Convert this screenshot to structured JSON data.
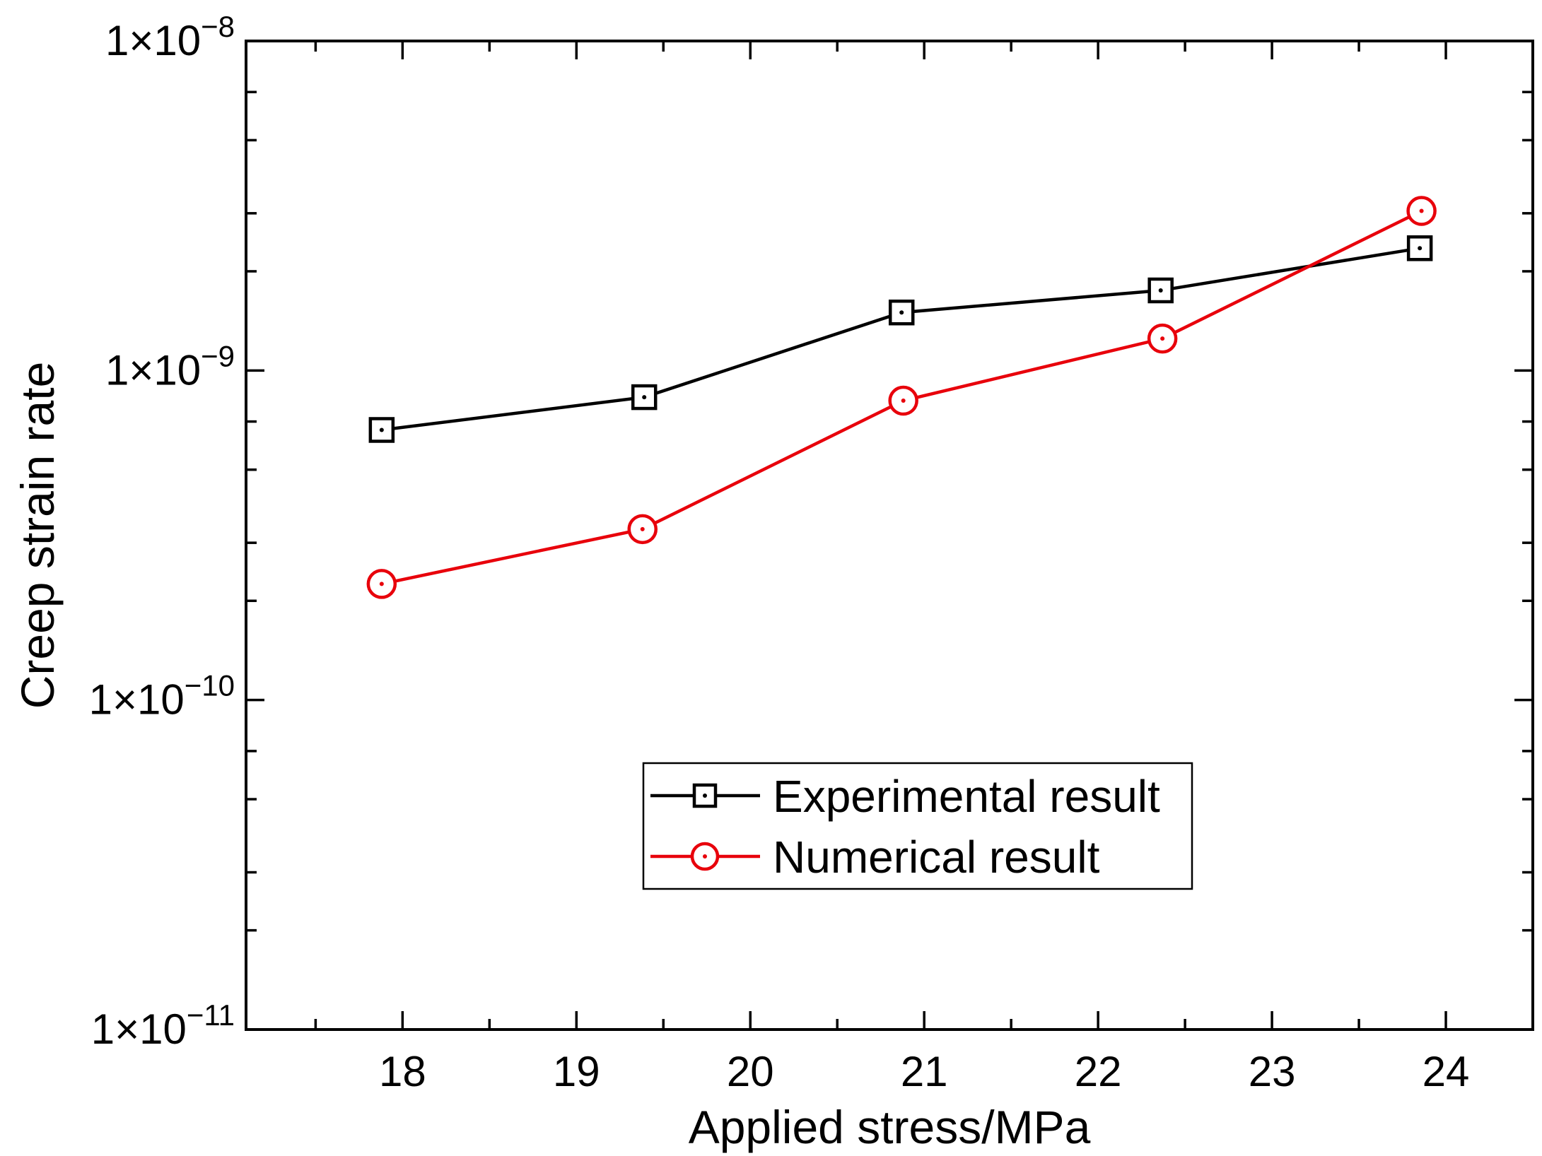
{
  "chart_data": {
    "type": "line",
    "title": "",
    "xlabel": "Applied stress/MPa",
    "ylabel": "Creep strain rate",
    "xlim": [
      17.1,
      24.5
    ],
    "ylim": [
      1e-11,
      1e-08
    ],
    "yscale": "log",
    "xticks": [
      18,
      19,
      20,
      21,
      22,
      23,
      24
    ],
    "xtick_labels": [
      "18",
      "19",
      "20",
      "21",
      "22",
      "23",
      "24"
    ],
    "yticks": [
      {
        "value": 1e-11,
        "base": "1×10",
        "exp": "−11"
      },
      {
        "value": 1e-10,
        "base": "1×10",
        "exp": "−10"
      },
      {
        "value": 1e-09,
        "base": "1×10",
        "exp": "−9"
      },
      {
        "value": 1e-08,
        "base": "1×10",
        "exp": "−8"
      }
    ],
    "grid": false,
    "legend_position": "lower-right-center",
    "series": [
      {
        "name": "Experimental result",
        "color": "#000000",
        "marker": "square-dot",
        "x": [
          17.88,
          19.39,
          20.87,
          22.36,
          23.85
        ],
        "y": [
          6.6e-10,
          8.3e-10,
          1.5e-09,
          1.75e-09,
          2.35e-09
        ]
      },
      {
        "name": "Numerical result",
        "color": "#e8000b",
        "marker": "circle-dot",
        "x": [
          17.88,
          19.38,
          20.88,
          22.37,
          23.86
        ],
        "y": [
          2.25e-10,
          3.3e-10,
          8.1e-10,
          1.25e-09,
          3.05e-09
        ]
      }
    ]
  }
}
